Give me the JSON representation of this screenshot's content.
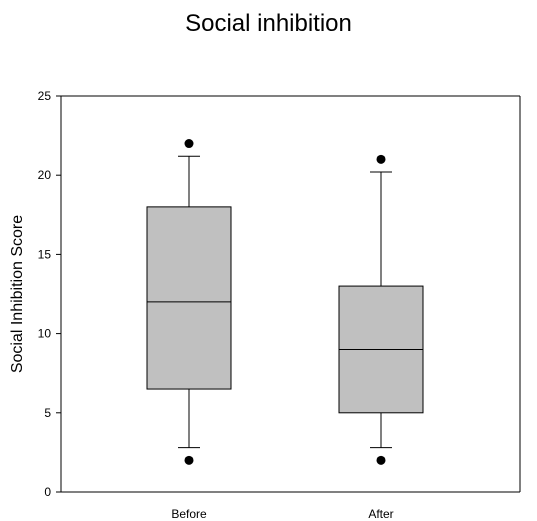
{
  "chart_data": {
    "type": "box",
    "title": "Social inhibition",
    "xlabel": "",
    "ylabel": "Social Inhibition Score",
    "ylim": [
      0,
      25
    ],
    "yticks": [
      0,
      5,
      10,
      15,
      20,
      25
    ],
    "grid": false,
    "categories": [
      "Before",
      "After"
    ],
    "boxes": [
      {
        "category": "Before",
        "whisker_low": 2.8,
        "q1": 6.5,
        "median": 12,
        "q3": 18,
        "whisker_high": 21.2,
        "outliers": [
          2,
          22
        ]
      },
      {
        "category": "After",
        "whisker_low": 2.8,
        "q1": 5,
        "median": 9,
        "q3": 13,
        "whisker_high": 20.2,
        "outliers": [
          2,
          21
        ]
      }
    ],
    "colors": {
      "box_fill": "#c0c0c0",
      "stroke": "#000000"
    }
  }
}
